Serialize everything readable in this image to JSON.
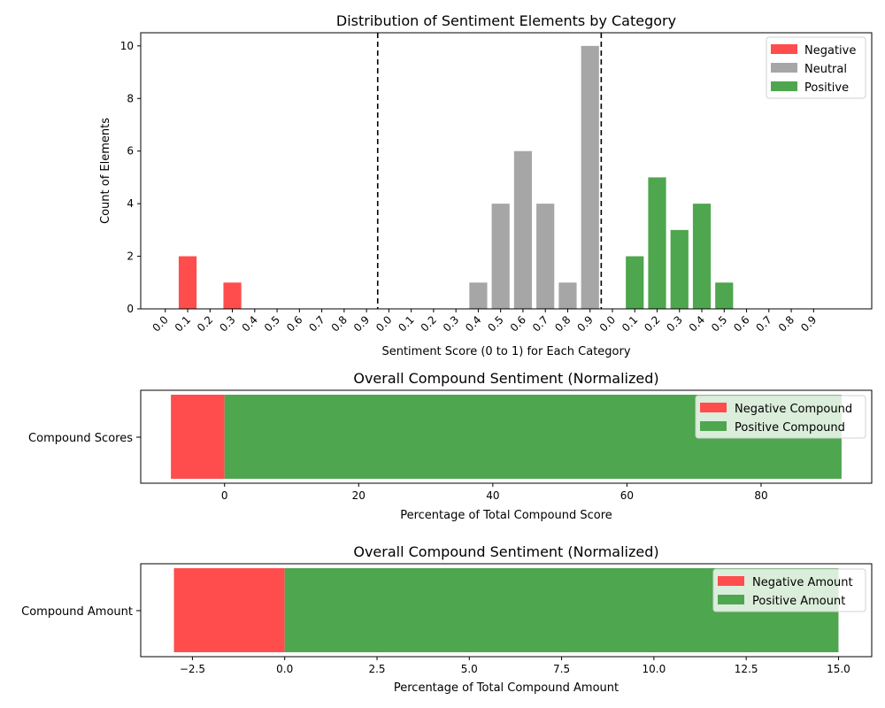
{
  "colors": {
    "negative": "#ff4d4d",
    "neutral": "#a6a6a6",
    "positive": "#4ea64e"
  },
  "chart_data": [
    {
      "type": "bar",
      "title": "Distribution of Sentiment Elements by Category",
      "xlabel": "Sentiment Score (0 to 1) for Each Category",
      "ylabel": "Count of Elements",
      "ylim": [
        0,
        10.5
      ],
      "yticks": [
        "0",
        "2",
        "4",
        "6",
        "8",
        "10"
      ],
      "legend_position": "top-right",
      "categories": [
        "0.0",
        "0.1",
        "0.2",
        "0.3",
        "0.4",
        "0.5",
        "0.6",
        "0.7",
        "0.8",
        "0.9"
      ],
      "series": [
        {
          "name": "Negative",
          "values": [
            0,
            2,
            0,
            1,
            0,
            0,
            0,
            0,
            0,
            0
          ]
        },
        {
          "name": "Neutral",
          "values": [
            0,
            0,
            0,
            0,
            1,
            4,
            6,
            4,
            1,
            10
          ]
        },
        {
          "name": "Positive",
          "values": [
            0,
            2,
            5,
            3,
            4,
            1,
            0,
            0,
            0,
            0
          ]
        }
      ]
    },
    {
      "type": "bar",
      "orientation": "horizontal",
      "title": "Overall Compound Sentiment (Normalized)",
      "xlabel": "Percentage of Total Compound Score",
      "category": "Compound Scores",
      "xlim": [
        -12.5,
        96.5
      ],
      "xticks": [
        "0",
        "20",
        "40",
        "60",
        "80"
      ],
      "legend_position": "top-right",
      "series": [
        {
          "name": "Negative Compound",
          "value": -8
        },
        {
          "name": "Positive Compound",
          "value": 92
        }
      ]
    },
    {
      "type": "bar",
      "orientation": "horizontal",
      "title": "Overall Compound Sentiment (Normalized)",
      "xlabel": "Percentage of Total Compound Amount",
      "category": "Compound Amount",
      "xlim": [
        -3.9,
        15.9
      ],
      "xticks": [
        "−2.5",
        "0.0",
        "2.5",
        "5.0",
        "7.5",
        "10.0",
        "12.5",
        "15.0"
      ],
      "legend_position": "top-right",
      "series": [
        {
          "name": "Negative Amount",
          "value": -3
        },
        {
          "name": "Positive Amount",
          "value": 15
        }
      ]
    }
  ]
}
